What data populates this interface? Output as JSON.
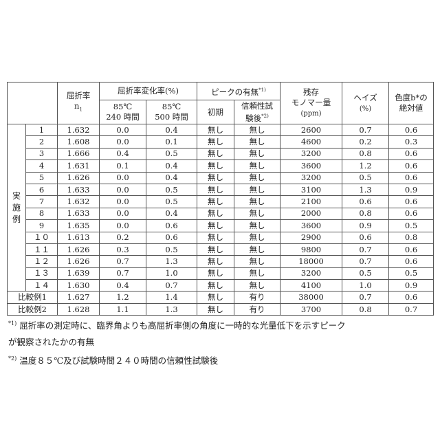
{
  "header": {
    "refractive_index": "屈折率",
    "refractive_index_symbol": "n",
    "refractive_index_sub": "1",
    "change_rate": "屈折率変化率(%)",
    "change_240_temp": "85℃",
    "change_240_time": "240 時間",
    "change_500_temp": "85℃",
    "change_500_time": "500 時間",
    "peak": "ピークの有無",
    "peak_mark": "*1)",
    "peak_initial": "初期",
    "peak_after_line1": "信頼性試",
    "peak_after_line2": "験後",
    "peak_after_mark": "*2)",
    "monomer_line1": "残存",
    "monomer_line2": "モノマー量",
    "monomer_unit": "(ppm)",
    "haze": "ヘイズ",
    "haze_unit": "(%)",
    "color": "色度b*の",
    "color_line2": "絶対値"
  },
  "group_label": "実施例",
  "rows": [
    {
      "label": "1",
      "n": "1.632",
      "c240": "0.0",
      "c500": "0.4",
      "init": "無し",
      "after": "無し",
      "monomer": "2600",
      "haze": "0.7",
      "b": "0.6"
    },
    {
      "label": "2",
      "n": "1.608",
      "c240": "0.0",
      "c500": "0.1",
      "init": "無し",
      "after": "無し",
      "monomer": "4600",
      "haze": "0.2",
      "b": "0.3"
    },
    {
      "label": "3",
      "n": "1.666",
      "c240": "0.4",
      "c500": "0.5",
      "init": "無し",
      "after": "無し",
      "monomer": "3200",
      "haze": "0.8",
      "b": "0.6"
    },
    {
      "label": "4",
      "n": "1.631",
      "c240": "0.1",
      "c500": "0.4",
      "init": "無し",
      "after": "無し",
      "monomer": "3600",
      "haze": "1.2",
      "b": "0.6"
    },
    {
      "label": "5",
      "n": "1.626",
      "c240": "0.0",
      "c500": "0.4",
      "init": "無し",
      "after": "無し",
      "monomer": "3200",
      "haze": "0.5",
      "b": "0.6"
    },
    {
      "label": "6",
      "n": "1.633",
      "c240": "0.0",
      "c500": "0.5",
      "init": "無し",
      "after": "無し",
      "monomer": "3100",
      "haze": "1.3",
      "b": "0.9"
    },
    {
      "label": "7",
      "n": "1.632",
      "c240": "0.0",
      "c500": "0.5",
      "init": "無し",
      "after": "無し",
      "monomer": "2100",
      "haze": "0.6",
      "b": "0.6"
    },
    {
      "label": "8",
      "n": "1.633",
      "c240": "0.0",
      "c500": "0.4",
      "init": "無し",
      "after": "無し",
      "monomer": "2000",
      "haze": "0.8",
      "b": "0.6"
    },
    {
      "label": "9",
      "n": "1.635",
      "c240": "0.0",
      "c500": "0.6",
      "init": "無し",
      "after": "無し",
      "monomer": "3600",
      "haze": "0.9",
      "b": "0.5"
    },
    {
      "label": "１０",
      "n": "1.613",
      "c240": "0.2",
      "c500": "0.6",
      "init": "無し",
      "after": "無し",
      "monomer": "2900",
      "haze": "0.6",
      "b": "0.8"
    },
    {
      "label": "１１",
      "n": "1.626",
      "c240": "0.3",
      "c500": "0.5",
      "init": "無し",
      "after": "無し",
      "monomer": "9800",
      "haze": "0.7",
      "b": "0.6"
    },
    {
      "label": "１２",
      "n": "1.626",
      "c240": "0.7",
      "c500": "1.3",
      "init": "無し",
      "after": "無し",
      "monomer": "18000",
      "haze": "0.7",
      "b": "0.6"
    },
    {
      "label": "１３",
      "n": "1.639",
      "c240": "0.7",
      "c500": "1.0",
      "init": "無し",
      "after": "無し",
      "monomer": "3200",
      "haze": "0.5",
      "b": "0.5"
    },
    {
      "label": "１４",
      "n": "1.630",
      "c240": "0.4",
      "c500": "0.7",
      "init": "無し",
      "after": "無し",
      "monomer": "4100",
      "haze": "1.0",
      "b": "0.9"
    }
  ],
  "comparative_rows": [
    {
      "label": "比較例1",
      "n": "1.627",
      "c240": "1.2",
      "c500": "1.4",
      "init": "無し",
      "after": "有り",
      "monomer": "38000",
      "haze": "0.7",
      "b": "0.6"
    },
    {
      "label": "比較例2",
      "n": "1.628",
      "c240": "1.1",
      "c500": "1.3",
      "init": "無し",
      "after": "有り",
      "monomer": "3700",
      "haze": "0.8",
      "b": "0.7"
    }
  ],
  "notes": {
    "note1_mark": "*1)",
    "note1_line1": "屈折率の測定時に、臨界角よりも高屈折率側の角度に一時的な光量低下を示すピーク",
    "note1_line2": "が観察されたかの有無",
    "note2_mark": "*2)",
    "note2": "温度８５℃及び試験時間２４０時間の信頼性試験後"
  }
}
